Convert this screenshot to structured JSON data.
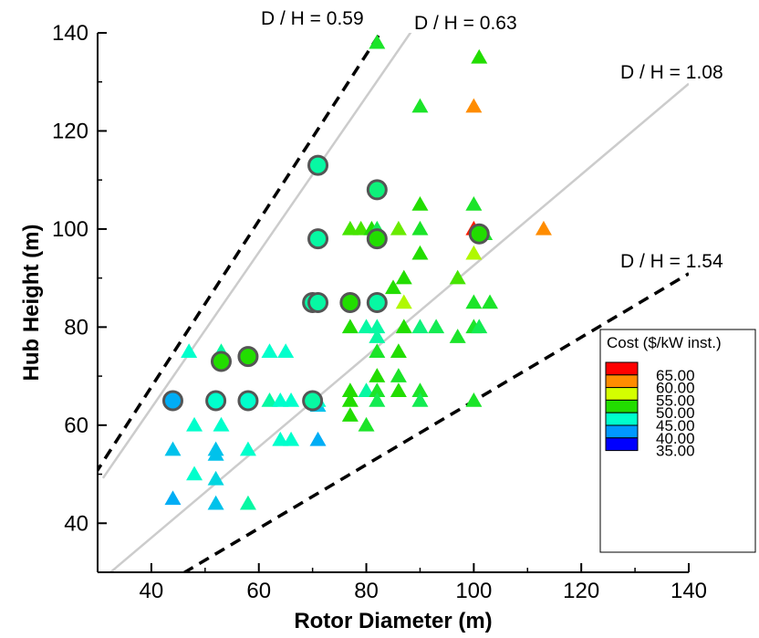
{
  "chart_data": {
    "type": "scatter",
    "title": "",
    "xlabel": "Rotor Diameter (m)",
    "ylabel": "Hub Height (m)",
    "xlim": [
      30,
      140
    ],
    "ylim": [
      30,
      140
    ],
    "xticks": [
      40,
      60,
      80,
      100,
      120,
      140
    ],
    "yticks": [
      40,
      60,
      80,
      100,
      120,
      140
    ],
    "grid": false,
    "legend": {
      "title": "Cost ($/kW inst.)",
      "placement": "bottom-right",
      "levels": [
        {
          "label": "65.00",
          "color": "#ff0000"
        },
        {
          "label": "60.00",
          "color": "#ff8c00"
        },
        {
          "label": "55.00",
          "color": "#d4ff00"
        },
        {
          "label": "50.00",
          "color": "#22dd00"
        },
        {
          "label": "45.00",
          "color": "#00ffcc"
        },
        {
          "label": "40.00",
          "color": "#0099ff"
        },
        {
          "label": "35.00",
          "color": "#0000ff"
        }
      ]
    },
    "ratio_lines": [
      {
        "label": "D / H = 0.59",
        "ratio": 0.59,
        "style": "dashed",
        "color": "#000000",
        "x_range": [
          24,
          86
        ]
      },
      {
        "label": "D / H = 0.63",
        "ratio": 0.63,
        "style": "solid",
        "color": "#cccccc",
        "x_range": [
          31,
          89
        ]
      },
      {
        "label": "D / H = 1.08",
        "ratio": 1.08,
        "style": "solid",
        "color": "#cccccc",
        "x_range": [
          32,
          140
        ]
      },
      {
        "label": "D / H = 1.54",
        "ratio": 1.54,
        "style": "dashed",
        "color": "#000000",
        "x_range": [
          46,
          140
        ]
      }
    ],
    "series": [
      {
        "marker": "triangle",
        "points": [
          [
            82,
            138,
            49
          ],
          [
            101,
            135,
            50
          ],
          [
            90,
            125,
            49
          ],
          [
            100,
            125,
            60
          ],
          [
            90,
            105,
            50
          ],
          [
            100,
            105,
            49
          ],
          [
            82,
            108,
            46
          ],
          [
            77,
            100,
            51
          ],
          [
            79,
            100,
            51
          ],
          [
            81,
            100,
            50
          ],
          [
            82,
            100,
            48
          ],
          [
            86,
            100,
            52
          ],
          [
            90,
            100,
            49
          ],
          [
            100,
            100,
            64
          ],
          [
            102,
            99,
            49
          ],
          [
            113,
            100,
            60
          ],
          [
            90,
            95,
            50
          ],
          [
            100,
            95,
            54
          ],
          [
            87,
            90,
            50
          ],
          [
            97,
            90,
            51
          ],
          [
            85,
            88,
            50
          ],
          [
            100,
            85,
            49
          ],
          [
            103,
            85,
            49
          ],
          [
            87,
            85,
            54
          ],
          [
            77,
            80,
            50
          ],
          [
            80,
            80,
            46
          ],
          [
            82,
            80,
            46
          ],
          [
            87,
            80,
            50
          ],
          [
            90,
            80,
            47
          ],
          [
            93,
            80,
            48
          ],
          [
            97,
            78,
            49
          ],
          [
            100,
            80,
            49
          ],
          [
            101,
            80,
            48
          ],
          [
            82,
            78,
            46
          ],
          [
            82,
            75,
            49
          ],
          [
            86,
            75,
            50
          ],
          [
            82,
            70,
            50
          ],
          [
            86,
            70,
            49
          ],
          [
            77,
            67,
            50
          ],
          [
            80,
            67,
            46
          ],
          [
            82,
            67,
            49
          ],
          [
            86,
            67,
            50
          ],
          [
            90,
            67,
            49
          ],
          [
            77,
            65,
            50
          ],
          [
            82,
            65,
            48
          ],
          [
            90,
            65,
            48
          ],
          [
            100,
            65,
            49
          ],
          [
            77,
            62,
            50
          ],
          [
            80,
            60,
            49
          ],
          [
            71,
            64,
            42
          ],
          [
            47,
            75,
            45
          ],
          [
            53,
            75,
            46
          ],
          [
            62,
            75,
            45
          ],
          [
            65,
            75,
            45
          ],
          [
            62,
            65,
            46
          ],
          [
            64,
            65,
            45
          ],
          [
            66,
            65,
            45
          ],
          [
            71,
            65,
            45
          ],
          [
            48,
            60,
            45
          ],
          [
            53,
            60,
            45
          ],
          [
            64,
            57,
            45
          ],
          [
            66,
            57,
            45
          ],
          [
            71,
            57,
            41
          ],
          [
            58,
            55,
            45
          ],
          [
            44,
            55,
            42
          ],
          [
            52,
            55,
            42
          ],
          [
            52,
            54,
            42
          ],
          [
            48,
            50,
            45
          ],
          [
            52,
            49,
            43
          ],
          [
            44,
            45,
            41
          ],
          [
            52,
            44,
            42
          ],
          [
            58,
            44,
            46
          ]
        ]
      },
      {
        "marker": "circle",
        "points": [
          [
            71,
            113,
            46
          ],
          [
            82,
            108,
            47
          ],
          [
            71,
            98,
            46
          ],
          [
            82,
            98,
            50
          ],
          [
            101,
            99,
            50
          ],
          [
            70,
            85,
            46
          ],
          [
            71,
            85,
            46
          ],
          [
            77,
            85,
            50
          ],
          [
            82,
            85,
            46
          ],
          [
            53,
            73,
            50
          ],
          [
            58,
            74,
            50
          ],
          [
            44,
            65,
            41
          ],
          [
            52,
            65,
            45
          ],
          [
            58,
            65,
            45
          ],
          [
            70,
            65,
            46
          ]
        ]
      }
    ]
  }
}
